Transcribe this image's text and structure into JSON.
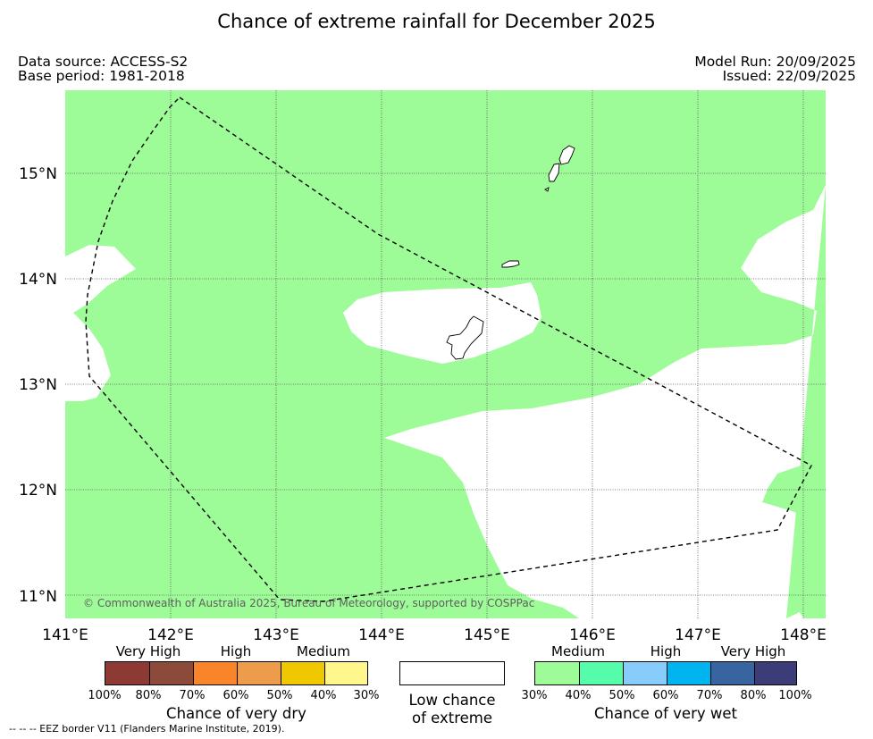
{
  "title": "Chance of extreme rainfall for December 2025",
  "meta": {
    "data_source": "Data source: ACCESS-S2",
    "base_period": "Base period: 1981-2018",
    "model_run": "Model Run: 20/09/2025",
    "issued": "Issued: 22/09/2025"
  },
  "map": {
    "lon_labels": [
      "141°E",
      "142°E",
      "143°E",
      "144°E",
      "145°E",
      "146°E",
      "147°E",
      "148°E"
    ],
    "lat_labels": [
      "15°N",
      "14°N",
      "13°N",
      "12°N",
      "11°N"
    ],
    "lon_range": [
      141,
      148.2
    ],
    "lat_range": [
      10.8,
      15.75
    ],
    "copyright": "© Commonwealth of Australia 2025, Bureau of Meteorology, supported by COSPPac",
    "colors": {
      "medium_wet": "#9efc98",
      "low_chance": "#ffffff",
      "grid": "#555555",
      "eez": "#000000"
    }
  },
  "legend_dry": {
    "categories": [
      "Very High",
      "High",
      "Medium"
    ],
    "colors": [
      "#8c3a33",
      "#8c4b3a",
      "#fa842a",
      "#ed9c4b",
      "#f0c800",
      "#fff68c"
    ],
    "ticks": [
      "100%",
      "80%",
      "70%",
      "60%",
      "50%",
      "40%",
      "30%"
    ],
    "caption": "Chance of very dry"
  },
  "legend_low": {
    "line1": "Low chance",
    "line2": "of extreme"
  },
  "legend_wet": {
    "categories": [
      "Medium",
      "High",
      "Very High"
    ],
    "colors": [
      "#9efc98",
      "#55fcaa",
      "#88ccfb",
      "#00b4f0",
      "#3864a0",
      "#3c3c78"
    ],
    "ticks": [
      "30%",
      "40%",
      "50%",
      "60%",
      "70%",
      "80%",
      "100%"
    ],
    "caption": "Chance of very wet"
  },
  "eez_note": "--  --  -- EEZ border V11 (Flanders Marine Institute, 2019)."
}
